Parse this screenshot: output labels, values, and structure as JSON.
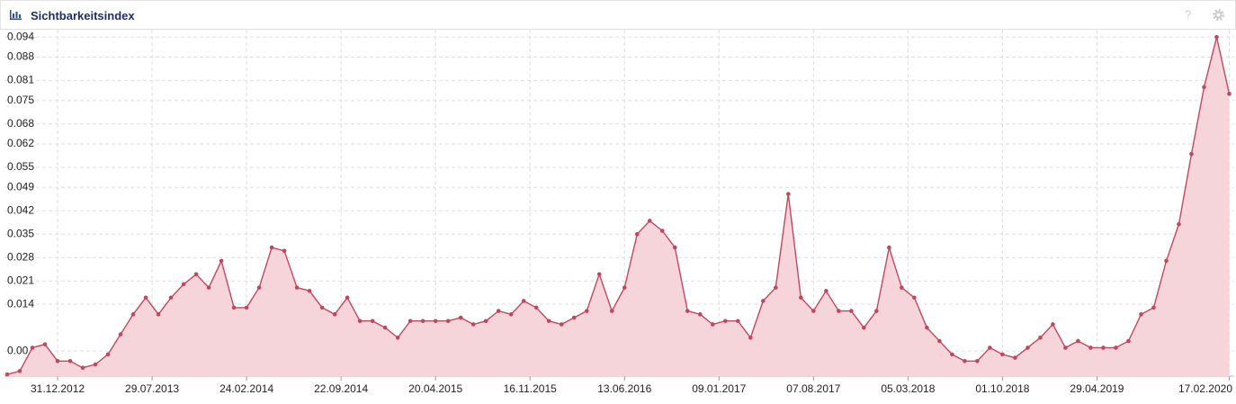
{
  "chart_data": {
    "type": "line",
    "title": "Sichtbarkeitsindex",
    "color": "#c0485e",
    "fill": "#f5d5da",
    "grid": true,
    "xlim": [
      "10.09.2012",
      "24.02.2020"
    ],
    "xticks": [
      "31.12.2012",
      "29.07.2013",
      "24.02.2014",
      "22.09.2014",
      "20.04.2015",
      "16.11.2015",
      "13.06.2016",
      "09.01.2017",
      "07.08.2017",
      "05.03.2018",
      "01.10.2018",
      "29.04.2019",
      "17.02.2020"
    ],
    "ylim": [
      -0.0075,
      0.0962
    ],
    "yticks": [
      {
        "value": 0,
        "label": "0.00"
      },
      0.014,
      0.021,
      0.028,
      0.035,
      0.042,
      0.049,
      0.055,
      0.062,
      0.068,
      0.075,
      0.081,
      0.088,
      0.094
    ],
    "x": [
      "10.09.2012",
      "08.10.2012",
      "05.11.2012",
      "03.12.2012",
      "31.12.2012",
      "28.01.2013",
      "25.02.2013",
      "25.03.2013",
      "22.04.2013",
      "20.05.2013",
      "17.06.2013",
      "15.07.2013",
      "12.08.2013",
      "09.09.2013",
      "07.10.2013",
      "04.11.2013",
      "02.12.2013",
      "30.12.2013",
      "27.01.2014",
      "24.02.2014",
      "24.03.2014",
      "21.04.2014",
      "19.05.2014",
      "16.06.2014",
      "14.07.2014",
      "11.08.2014",
      "08.09.2014",
      "06.10.2014",
      "03.11.2014",
      "01.12.2014",
      "29.12.2014",
      "26.01.2015",
      "23.02.2015",
      "23.03.2015",
      "20.04.2015",
      "18.05.2015",
      "15.06.2015",
      "13.07.2015",
      "10.08.2015",
      "07.09.2015",
      "05.10.2015",
      "02.11.2015",
      "30.11.2015",
      "28.12.2015",
      "25.01.2016",
      "22.02.2016",
      "21.03.2016",
      "18.04.2016",
      "16.05.2016",
      "13.06.2016",
      "11.07.2016",
      "08.08.2016",
      "05.09.2016",
      "03.10.2016",
      "31.10.2016",
      "28.11.2016",
      "26.12.2016",
      "23.01.2017",
      "20.02.2017",
      "20.03.2017",
      "17.04.2017",
      "15.05.2017",
      "12.06.2017",
      "10.07.2017",
      "07.08.2017",
      "04.09.2017",
      "02.10.2017",
      "30.10.2017",
      "27.11.2017",
      "25.12.2017",
      "22.01.2018",
      "19.02.2018",
      "19.03.2018",
      "16.04.2018",
      "14.05.2018",
      "11.06.2018",
      "09.07.2018",
      "06.08.2018",
      "03.09.2018",
      "01.10.2018",
      "29.10.2018",
      "26.11.2018",
      "24.12.2018",
      "21.01.2019",
      "18.02.2019",
      "18.03.2019",
      "15.04.2019",
      "13.05.2019",
      "10.06.2019",
      "08.07.2019",
      "05.08.2019",
      "02.09.2019",
      "30.09.2019",
      "28.10.2019",
      "25.11.2019",
      "23.12.2019",
      "20.01.2020",
      "17.02.2020"
    ],
    "values": [
      -0.007,
      -0.006,
      0.001,
      0.002,
      -0.003,
      -0.003,
      -0.005,
      -0.004,
      -0.001,
      0.005,
      0.011,
      0.016,
      0.011,
      0.016,
      0.02,
      0.023,
      0.019,
      0.027,
      0.013,
      0.013,
      0.019,
      0.031,
      0.03,
      0.019,
      0.018,
      0.013,
      0.011,
      0.016,
      0.009,
      0.009,
      0.007,
      0.004,
      0.009,
      0.009,
      0.009,
      0.009,
      0.01,
      0.008,
      0.009,
      0.012,
      0.011,
      0.015,
      0.013,
      0.009,
      0.008,
      0.01,
      0.012,
      0.023,
      0.012,
      0.019,
      0.035,
      0.039,
      0.036,
      0.031,
      0.012,
      0.011,
      0.008,
      0.009,
      0.009,
      0.004,
      0.015,
      0.019,
      0.047,
      0.016,
      0.012,
      0.018,
      0.012,
      0.012,
      0.007,
      0.012,
      0.031,
      0.019,
      0.016,
      0.007,
      0.003,
      -0.001,
      -0.003,
      -0.003,
      0.001,
      -0.001,
      -0.002,
      0.001,
      0.004,
      0.008,
      0.001,
      0.003,
      0.001,
      0.001,
      0.001,
      0.003,
      0.011,
      0.013,
      0.027,
      0.038,
      0.059,
      0.079,
      0.094,
      0.077
    ]
  }
}
